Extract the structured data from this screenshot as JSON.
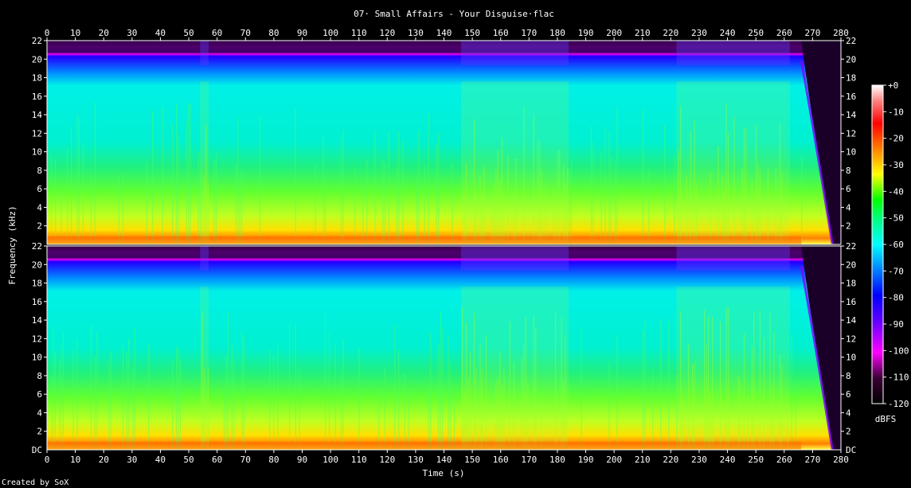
{
  "chart_data": {
    "type": "heatmap",
    "title": "07· Small Affairs - Your Disguise·flac",
    "xlabel": "Time (s)",
    "ylabel": "Frequency (kHz)",
    "xlim": [
      0,
      280
    ],
    "x_ticks": [
      "0",
      "10",
      "20",
      "30",
      "40",
      "50",
      "60",
      "70",
      "80",
      "90",
      "100",
      "110",
      "120",
      "130",
      "140",
      "150",
      "160",
      "170",
      "180",
      "190",
      "200",
      "210",
      "220",
      "230",
      "240",
      "250",
      "260",
      "270",
      "280"
    ],
    "ylim": [
      0,
      22
    ],
    "y_ticks": [
      "22",
      "20",
      "18",
      "16",
      "14",
      "12",
      "10",
      "8",
      "6",
      "4",
      "2"
    ],
    "y_ticks_bottom_label": "DC",
    "channels": [
      "channel-1",
      "channel-2"
    ],
    "colorbar": {
      "label": "dBFS",
      "ticks": [
        "+0",
        "-10",
        "-20",
        "-30",
        "-40",
        "-50",
        "-60",
        "-70",
        "-80",
        "-90",
        "-100",
        "-110",
        "-120"
      ],
      "range": [
        -120,
        0
      ]
    },
    "loud_sections_s": [
      [
        54,
        57
      ],
      [
        146,
        184
      ],
      [
        222,
        262
      ]
    ],
    "fade_out_start_s": 266,
    "lowpass_cutoff_khz": 20.5
  },
  "footer": "Created by SoX",
  "colors": {
    "background": "#000000",
    "frame": "#ffffff",
    "axis_text": "#ffffff"
  }
}
